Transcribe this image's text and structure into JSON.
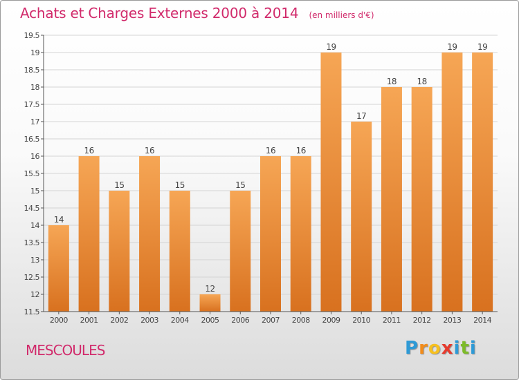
{
  "title": "Achats et Charges Externes 2000 à 2014",
  "subtitle": "(en milliers d'€)",
  "commune": "MESCOULES",
  "brand": {
    "letters": [
      "P",
      "r",
      "o",
      "x",
      "i",
      "t",
      "i"
    ],
    "colors": [
      "#2e9ad6",
      "#f28c1b",
      "#f6c020",
      "#e63b2e",
      "#2e9ad6",
      "#7dbb2a",
      "#2e9ad6"
    ]
  },
  "colors": {
    "bar_top": "#f6a655",
    "bar_bottom": "#d8711f",
    "title": "#d12a6b",
    "grid": "#d4d4d4",
    "axis": "#555555",
    "text": "#444444"
  },
  "chart_data": {
    "type": "bar",
    "title": "Achats et Charges Externes 2000 à 2014",
    "subtitle": "(en milliers d'€)",
    "categories": [
      "2000",
      "2001",
      "2002",
      "2003",
      "2004",
      "2005",
      "2006",
      "2007",
      "2008",
      "2009",
      "2010",
      "2011",
      "2012",
      "2013",
      "2014"
    ],
    "values": [
      14,
      16,
      15,
      16,
      15,
      12,
      15,
      16,
      16,
      19,
      17,
      18,
      18,
      19,
      19
    ],
    "data_labels": [
      "14",
      "16",
      "15",
      "16",
      "15",
      "12",
      "15",
      "16",
      "16",
      "19",
      "17",
      "18",
      "18",
      "19",
      "19"
    ],
    "ylim": [
      11.5,
      19.5
    ],
    "yticks": [
      "11.5",
      "12",
      "12.5",
      "13",
      "13.5",
      "14",
      "14.5",
      "15",
      "15.5",
      "16",
      "16.5",
      "17",
      "17.5",
      "18",
      "18.5",
      "19",
      "19.5"
    ],
    "grid": true,
    "legend": "none"
  }
}
